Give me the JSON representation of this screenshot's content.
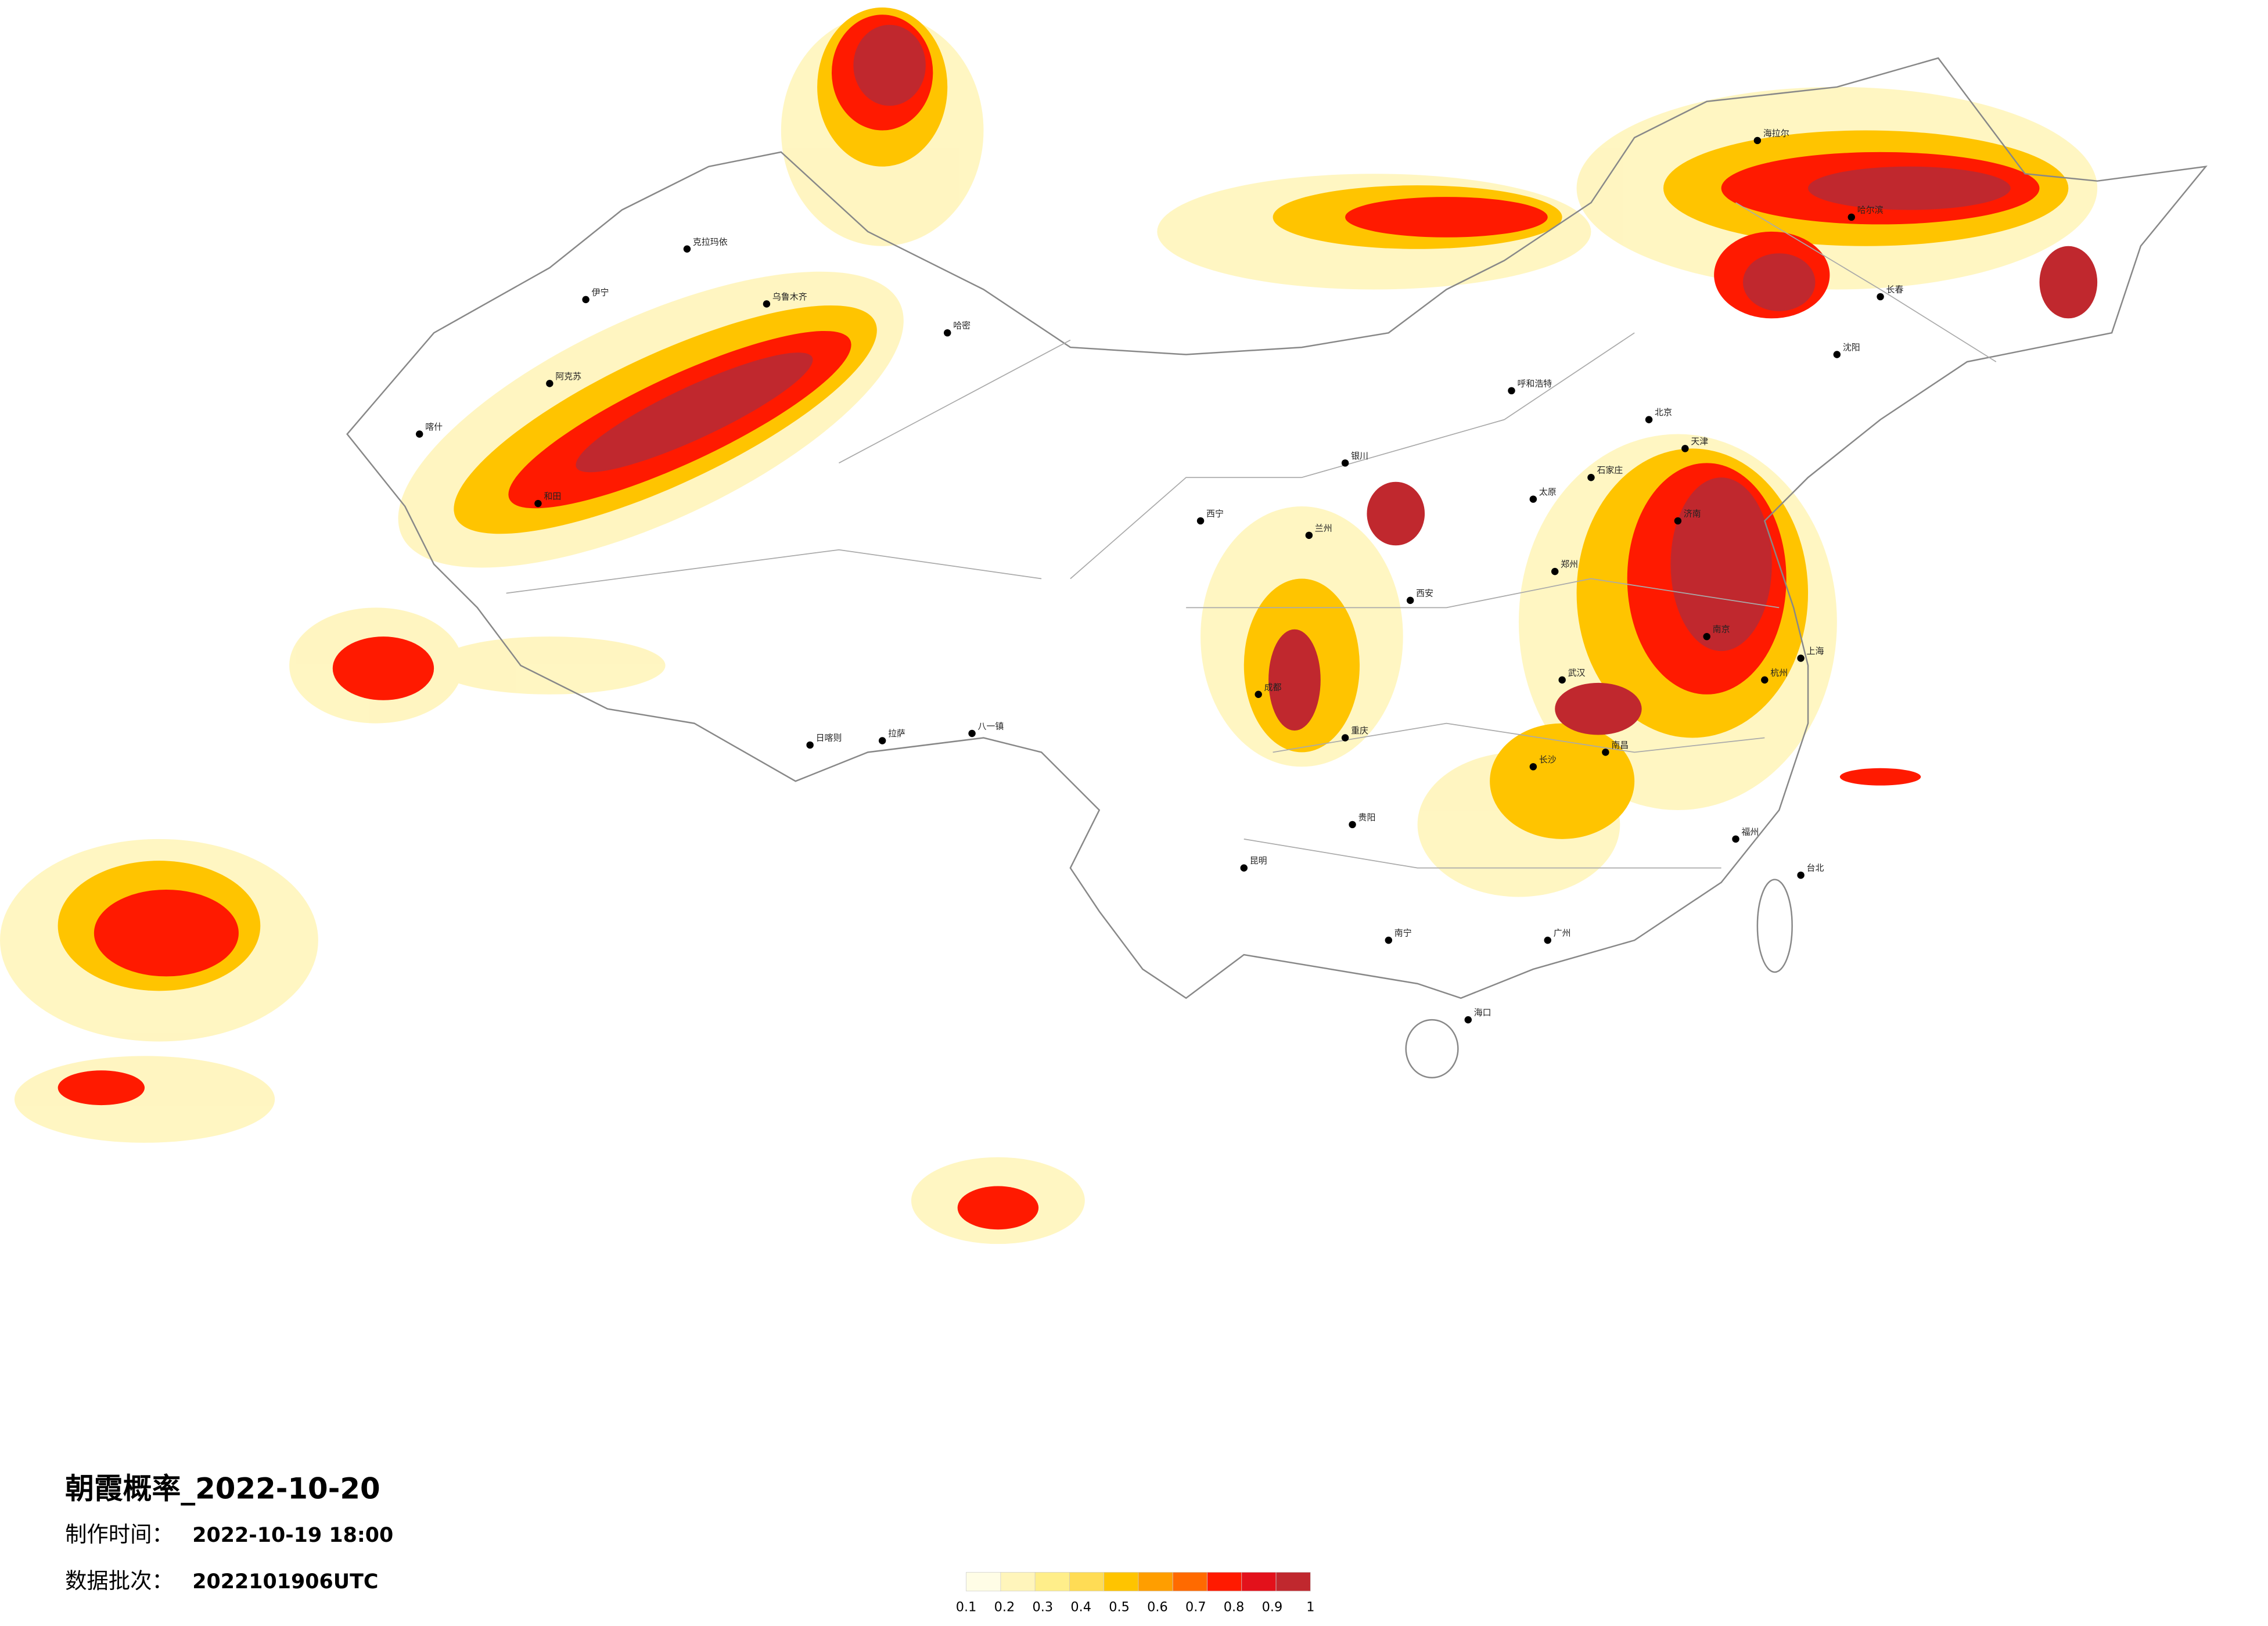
{
  "title": "朝霞概率_2022-10-20",
  "production_time": {
    "label": "制作时间：",
    "value": "2022-10-19 18:00"
  },
  "batch": {
    "label": "数据批次：",
    "value": "2022101906UTC"
  },
  "legend": {
    "colors": [
      "#fffde6",
      "#fff5bb",
      "#ffee8a",
      "#ffdc55",
      "#ffc400",
      "#ff9e00",
      "#ff6a00",
      "#ff1a00",
      "#e3111b",
      "#c0282e"
    ],
    "ticks": [
      0.1,
      0.2,
      0.3,
      0.4,
      0.5,
      0.6,
      0.7,
      0.8,
      0.9,
      1
    ]
  },
  "cities": [
    "克拉玛依",
    "乌鲁木齐",
    "伊宁",
    "阿克苏",
    "喀什",
    "和田",
    "哈密",
    "拉萨",
    "日喀则",
    "八一镇",
    "西宁",
    "兰州",
    "银川",
    "呼和浩特",
    "太原",
    "石家庄",
    "北京",
    "天津",
    "济南",
    "西安",
    "郑州",
    "武汉",
    "成都",
    "重庆",
    "贵阳",
    "昆明",
    "南宁",
    "广州",
    "长沙",
    "南昌",
    "杭州",
    "南京",
    "上海",
    "福州",
    "海口",
    "台北",
    "沈阳",
    "长春",
    "哈尔滨",
    "海拉尔"
  ]
}
